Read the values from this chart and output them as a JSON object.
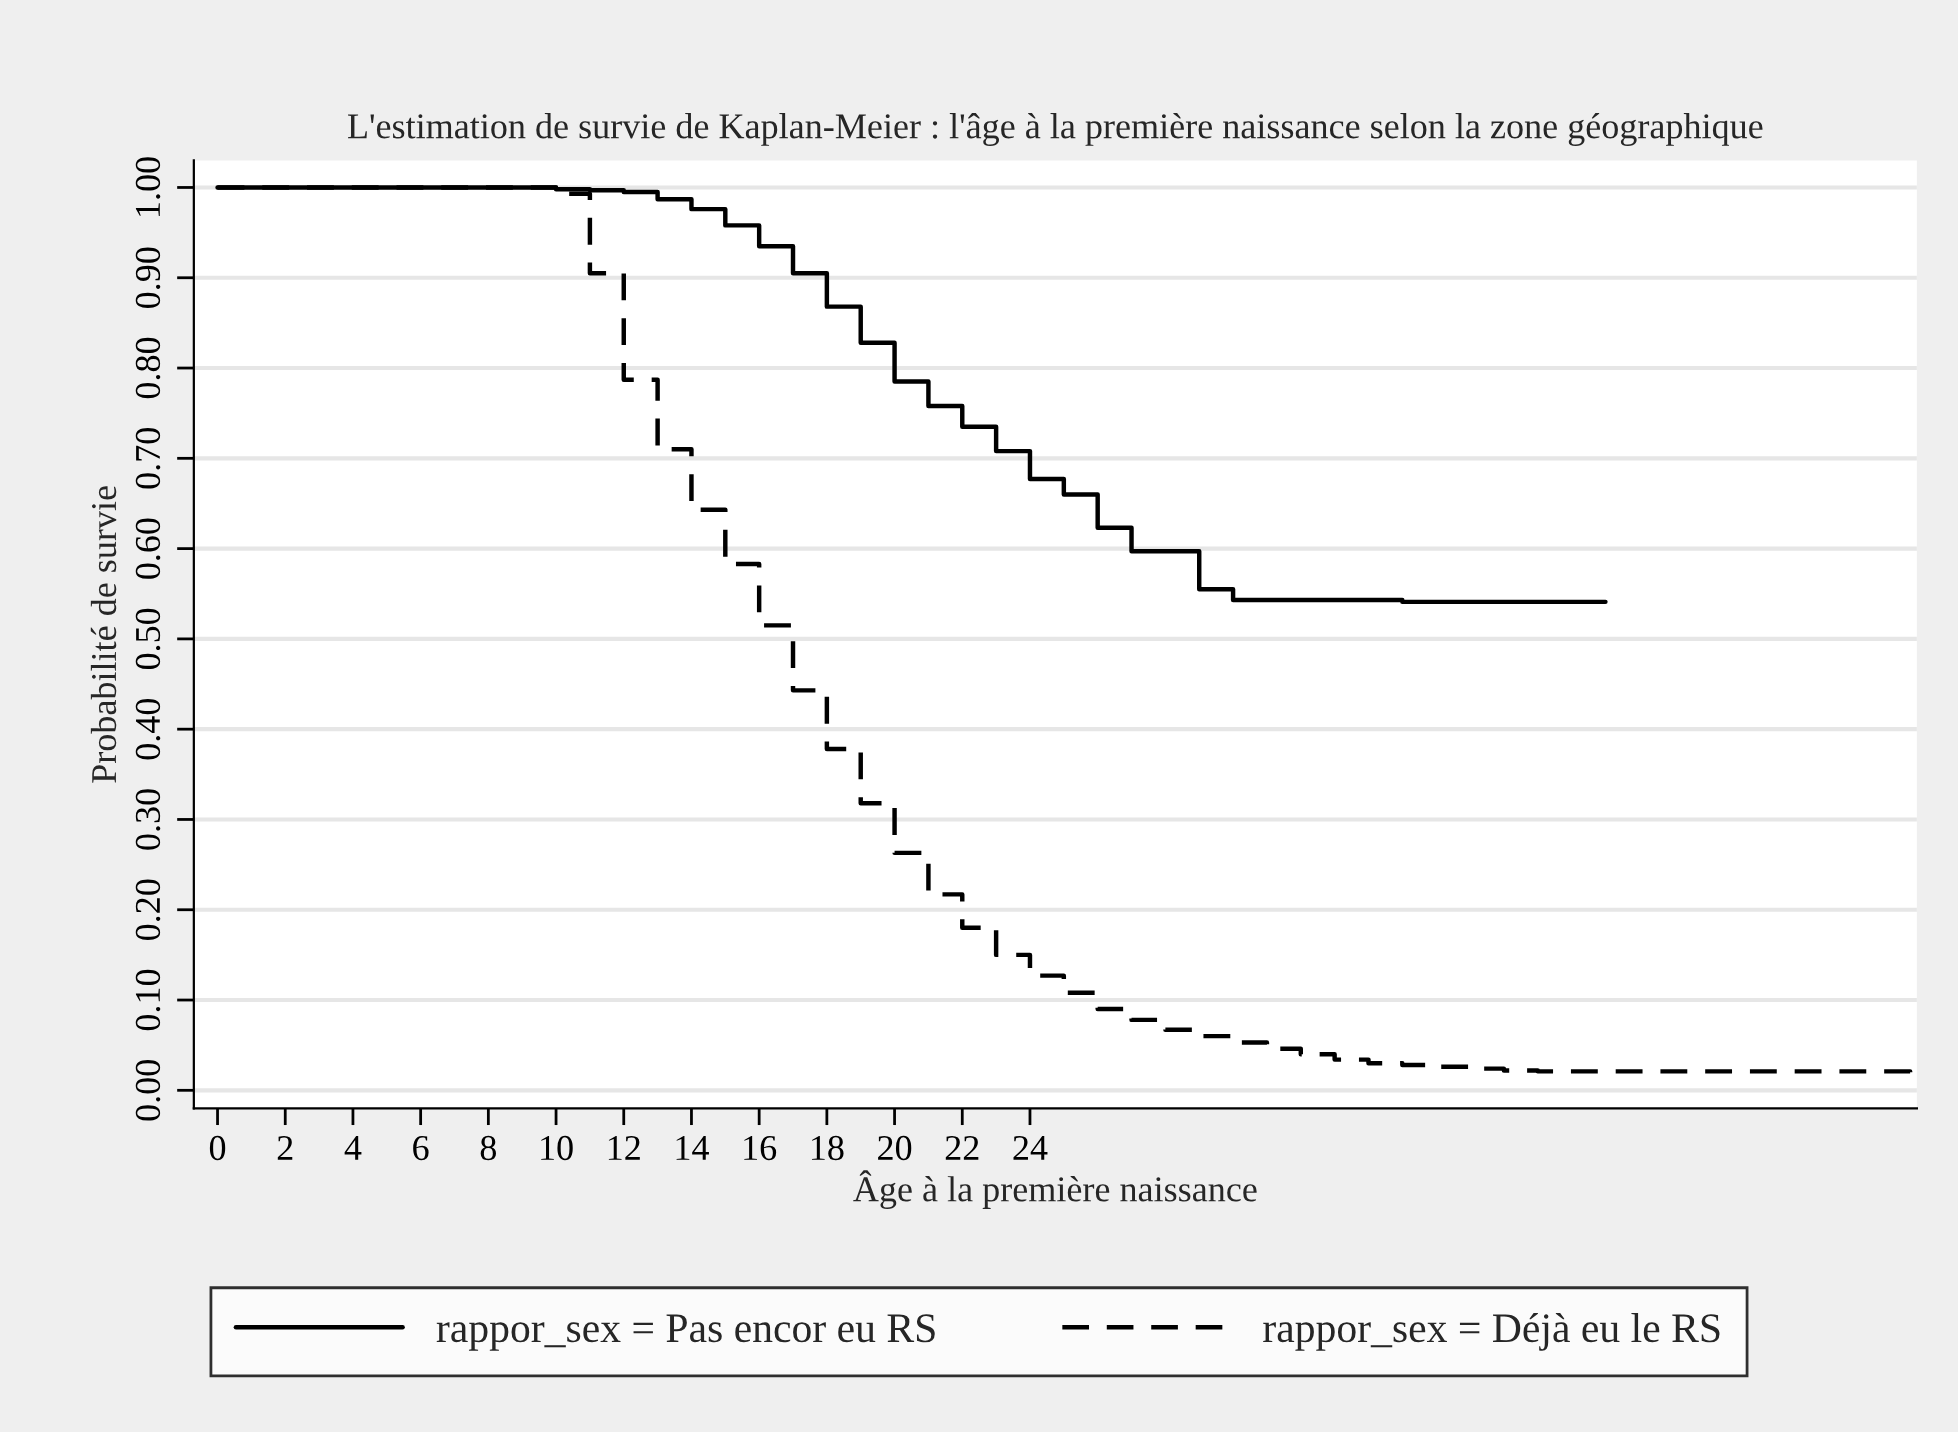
{
  "chart_data": {
    "type": "step",
    "title": "L'estimation de survie de Kaplan-Meier : l'âge à la première naissance selon la zone géographique",
    "xlabel": "Âge à la première naissance",
    "ylabel": "Probabilité de survie",
    "xlim": [
      -0.7,
      50.2
    ],
    "xticks": [
      0,
      2,
      4,
      6,
      8,
      10,
      12,
      14,
      16,
      18,
      20,
      22,
      24
    ],
    "ylim": [
      -0.02,
      1.03
    ],
    "yticks": [
      {
        "value": 0,
        "label": "0.00"
      },
      {
        "value": 0.1,
        "label": "0.10"
      },
      {
        "value": 0.2,
        "label": "0.20"
      },
      {
        "value": 0.3,
        "label": "0.30"
      },
      {
        "value": 0.4,
        "label": "0.40"
      },
      {
        "value": 0.5,
        "label": "0.50"
      },
      {
        "value": 0.6,
        "label": "0.60"
      },
      {
        "value": 0.7,
        "label": "0.70"
      },
      {
        "value": 0.8,
        "label": "0.80"
      },
      {
        "value": 0.9,
        "label": "0.90"
      },
      {
        "value": 1.0,
        "label": "1.00"
      }
    ],
    "grid": "y",
    "legend": "bottom",
    "series": [
      {
        "name": "rappor_sex = Pas encor eu RS",
        "color": "#000000",
        "line_style": "solid",
        "x": [
          0,
          10,
          11,
          12,
          13,
          14,
          15,
          16,
          17,
          18,
          19,
          20,
          21,
          22,
          23,
          24,
          25,
          26,
          27,
          29,
          30,
          35,
          41
        ],
        "values": [
          1.0,
          0.998,
          0.997,
          0.995,
          0.987,
          0.976,
          0.958,
          0.935,
          0.905,
          0.868,
          0.828,
          0.785,
          0.758,
          0.735,
          0.708,
          0.677,
          0.66,
          0.623,
          0.597,
          0.555,
          0.543,
          0.541,
          0.541
        ]
      },
      {
        "name": "rappor_sex = Déjà eu le RS",
        "color": "#000000",
        "line_style": "dashed",
        "x": [
          0,
          10,
          11,
          12,
          13,
          14,
          15,
          16,
          17,
          18,
          19,
          20,
          21,
          22,
          23,
          24,
          25,
          26,
          27,
          28,
          29,
          30,
          31,
          32,
          33,
          34,
          35,
          36,
          37,
          38,
          39,
          50
        ],
        "values": [
          1.0,
          0.993,
          0.905,
          0.787,
          0.71,
          0.643,
          0.583,
          0.515,
          0.443,
          0.378,
          0.318,
          0.263,
          0.217,
          0.18,
          0.15,
          0.127,
          0.108,
          0.09,
          0.078,
          0.067,
          0.06,
          0.053,
          0.046,
          0.04,
          0.034,
          0.03,
          0.028,
          0.026,
          0.024,
          0.022,
          0.021,
          0.02
        ]
      }
    ]
  }
}
